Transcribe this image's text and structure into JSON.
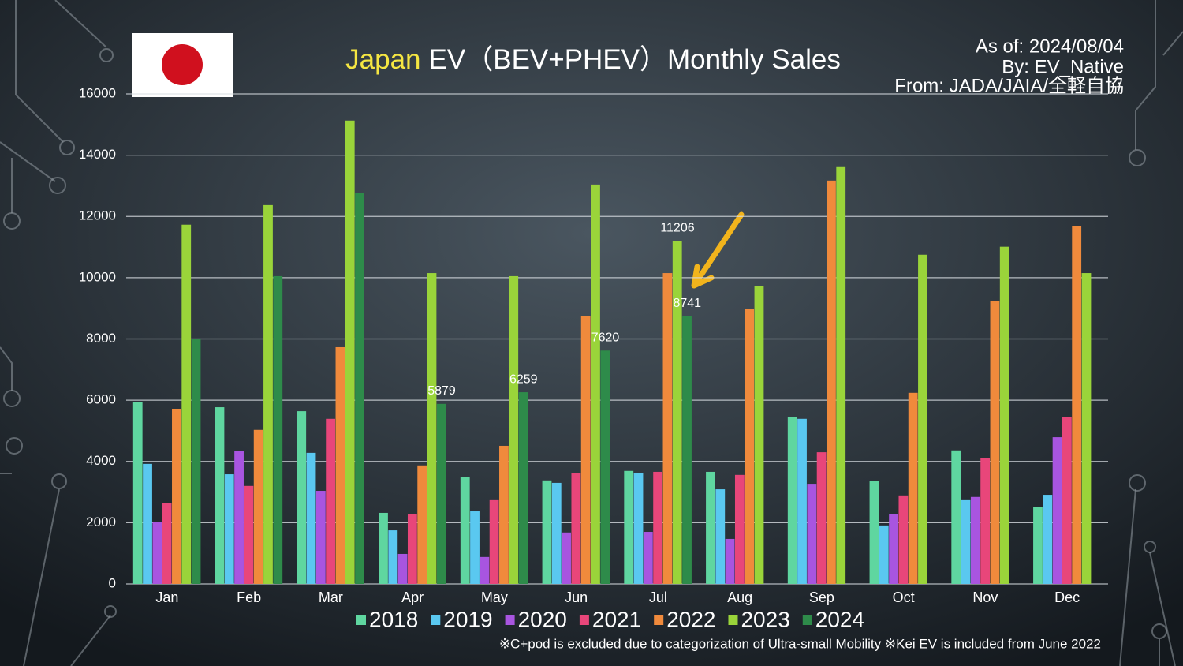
{
  "chart_data": {
    "type": "bar",
    "title_highlight": "Japan",
    "title": "EV（BEV+PHEV）Monthly Sales",
    "annotations": [
      "As of: 2024/08/04",
      "By: EV_Native",
      "From: JADA/JAIA/全軽自協"
    ],
    "footnote": "※C+pod is excluded due to categorization of Ultra-small Mobility ※Kei EV is included from June 2022",
    "categories": [
      "Jan",
      "Feb",
      "Mar",
      "Apr",
      "May",
      "Jun",
      "Jul",
      "Aug",
      "Sep",
      "Oct",
      "Nov",
      "Dec"
    ],
    "series": [
      {
        "name": "2018",
        "color": "#5fd6a0",
        "values": [
          5950,
          5770,
          5640,
          2320,
          3480,
          3380,
          3690,
          3660,
          5440,
          3350,
          4360,
          2500
        ]
      },
      {
        "name": "2019",
        "color": "#5ac8f0",
        "values": [
          3920,
          3580,
          4280,
          1750,
          2370,
          3300,
          3610,
          3090,
          5390,
          1910,
          2760,
          2910
        ]
      },
      {
        "name": "2020",
        "color": "#a855e0",
        "values": [
          2010,
          4330,
          3040,
          980,
          880,
          1680,
          1700,
          1470,
          3270,
          2290,
          2840,
          4790
        ]
      },
      {
        "name": "2021",
        "color": "#e8467a",
        "values": [
          2650,
          3200,
          5390,
          2270,
          2760,
          3610,
          3660,
          3560,
          4300,
          2890,
          4120,
          5460
        ]
      },
      {
        "name": "2022",
        "color": "#f08a3c",
        "values": [
          5720,
          5030,
          7730,
          3870,
          4510,
          8760,
          10150,
          8970,
          13170,
          6240,
          9250,
          11680
        ]
      },
      {
        "name": "2023",
        "color": "#9ad43a",
        "values": [
          11730,
          12370,
          15130,
          10150,
          10050,
          13040,
          11206,
          9720,
          13610,
          10750,
          11010,
          10150
        ],
        "value_labels": [
          null,
          null,
          null,
          null,
          null,
          null,
          "11206",
          null,
          null,
          null,
          null,
          null
        ]
      },
      {
        "name": "2024",
        "color": "#2e8b4a",
        "values": [
          7990,
          10050,
          12760,
          5879,
          6259,
          7620,
          8741,
          null,
          null,
          null,
          null,
          null
        ],
        "value_labels": [
          null,
          null,
          null,
          "5879",
          "6259",
          "7620",
          "8741",
          null,
          null,
          null,
          null,
          null
        ]
      }
    ],
    "ylim": [
      0,
      16000
    ],
    "yticks": [
      0,
      2000,
      4000,
      6000,
      8000,
      10000,
      12000,
      14000,
      16000
    ],
    "grid": true
  }
}
